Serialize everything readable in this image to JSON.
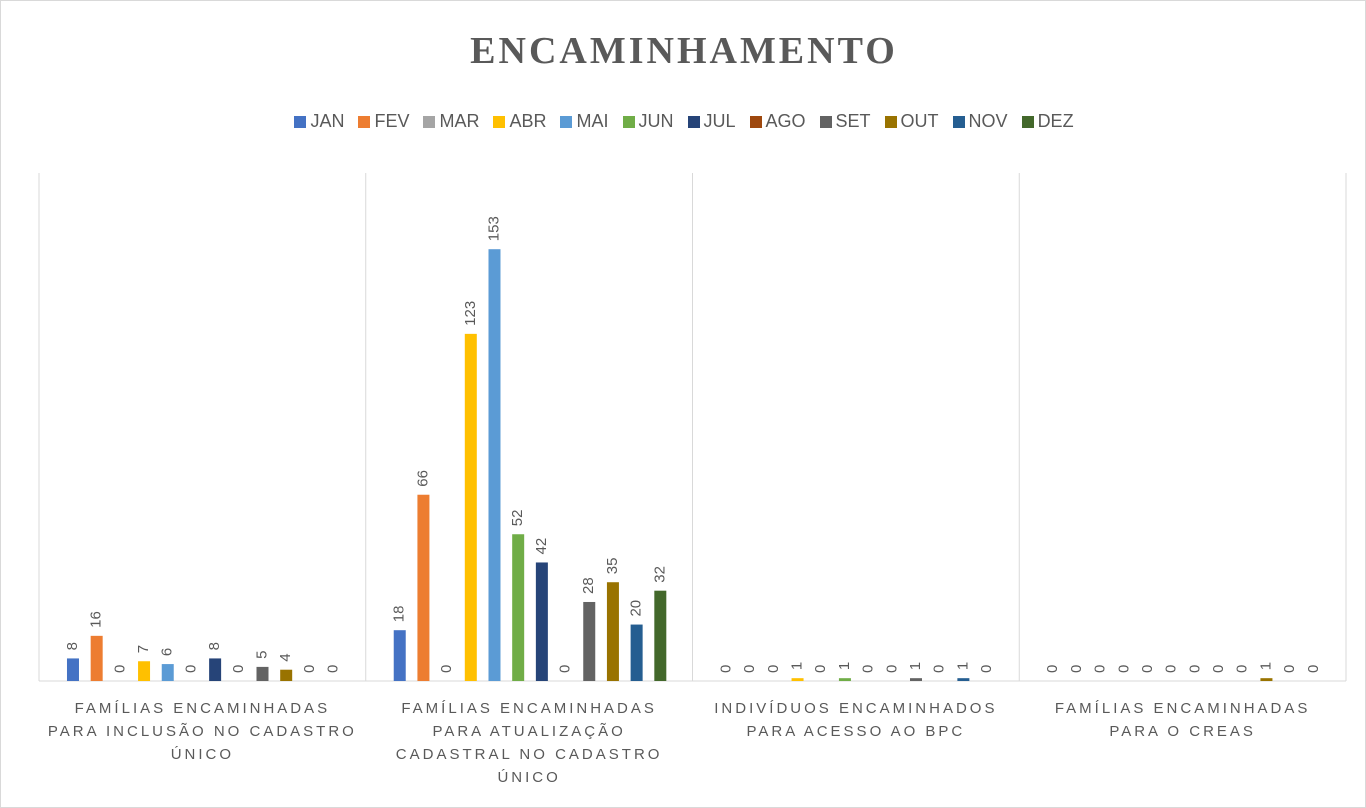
{
  "chart_data": {
    "type": "bar",
    "title": "ENCAMINHAMENTO",
    "categories": [
      "FAMÍLIAS ENCAMINHADAS PARA INCLUSÃO NO CADASTRO ÚNICO",
      "FAMÍLIAS ENCAMINHADAS PARA ATUALIZAÇÃO CADASTRAL NO CADASTRO ÚNICO",
      "INDIVÍDUOS ENCAMINHADOS PARA ACESSO AO BPC",
      "FAMÍLIAS ENCAMINHADAS PARA O CREAS"
    ],
    "series": [
      {
        "name": "JAN",
        "color": "#4472c4",
        "values": [
          8,
          18,
          0,
          0
        ]
      },
      {
        "name": "FEV",
        "color": "#ed7d31",
        "values": [
          16,
          66,
          0,
          0
        ]
      },
      {
        "name": "MAR",
        "color": "#a5a5a5",
        "values": [
          0,
          0,
          0,
          0
        ]
      },
      {
        "name": "ABR",
        "color": "#ffc000",
        "values": [
          7,
          123,
          1,
          0
        ]
      },
      {
        "name": "MAI",
        "color": "#5b9bd5",
        "values": [
          6,
          153,
          0,
          0
        ]
      },
      {
        "name": "JUN",
        "color": "#70ad47",
        "values": [
          0,
          52,
          1,
          0
        ]
      },
      {
        "name": "JUL",
        "color": "#264478",
        "values": [
          8,
          42,
          0,
          0
        ]
      },
      {
        "name": "AGO",
        "color": "#9e480e",
        "values": [
          0,
          0,
          0,
          0
        ]
      },
      {
        "name": "SET",
        "color": "#636363",
        "values": [
          5,
          28,
          1,
          0
        ]
      },
      {
        "name": "OUT",
        "color": "#997300",
        "values": [
          4,
          35,
          0,
          1
        ]
      },
      {
        "name": "NOV",
        "color": "#255e91",
        "values": [
          0,
          20,
          1,
          0
        ]
      },
      {
        "name": "DEZ",
        "color": "#43682b",
        "values": [
          0,
          32,
          0,
          0
        ]
      }
    ],
    "ylim": [
      0,
      180
    ],
    "legend": "top"
  }
}
